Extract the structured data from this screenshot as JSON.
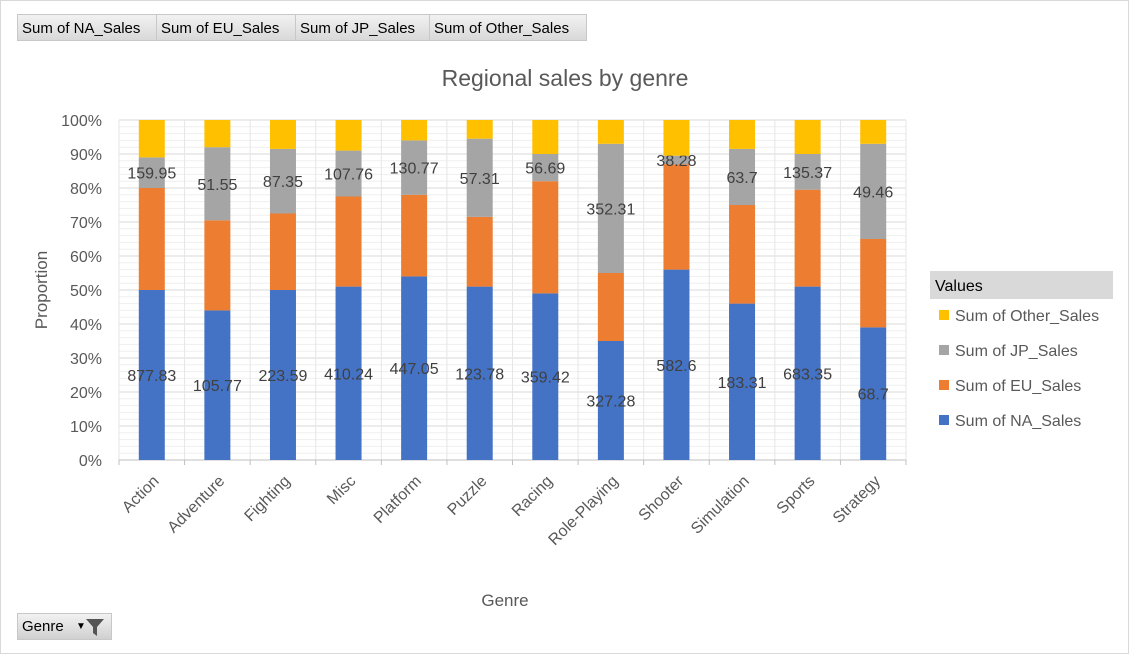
{
  "field_buttons": [
    "Sum of NA_Sales",
    "Sum of EU_Sales",
    "Sum of JP_Sales",
    "Sum of Other_Sales"
  ],
  "genre_filter": {
    "label": "Genre"
  },
  "legend_title": "Values",
  "colors": {
    "na": "#4472c4",
    "eu": "#ed7d31",
    "jp": "#a5a5a5",
    "other": "#ffc000"
  },
  "chart_data": {
    "type": "bar",
    "stacked": "percent",
    "title": "Regional sales by genre",
    "xlabel": "Genre",
    "ylabel": "Proportion",
    "ylim": [
      0,
      1
    ],
    "ytick_labels": [
      "0%",
      "10%",
      "20%",
      "30%",
      "40%",
      "50%",
      "60%",
      "70%",
      "80%",
      "90%",
      "100%"
    ],
    "grid": true,
    "legend_position": "right",
    "categories": [
      "Action",
      "Adventure",
      "Fighting",
      "Misc",
      "Platform",
      "Puzzle",
      "Racing",
      "Role-Playing",
      "Shooter",
      "Simulation",
      "Sports",
      "Strategy"
    ],
    "series": [
      {
        "name": "Sum of NA_Sales",
        "key": "na",
        "values": [
          0.5,
          0.44,
          0.5,
          0.51,
          0.54,
          0.51,
          0.49,
          0.35,
          0.56,
          0.46,
          0.51,
          0.39
        ],
        "labels": [
          "877.83",
          "105.77",
          "223.59",
          "410.24",
          "447.05",
          "123.78",
          "359.42",
          "327.28",
          "582.6",
          "183.31",
          "683.35",
          "68.7"
        ]
      },
      {
        "name": "Sum of EU_Sales",
        "key": "eu",
        "values": [
          0.3,
          0.265,
          0.225,
          0.265,
          0.24,
          0.205,
          0.33,
          0.2,
          0.31,
          0.29,
          0.285,
          0.26
        ]
      },
      {
        "name": "Sum of JP_Sales",
        "key": "jp",
        "values": [
          0.09,
          0.215,
          0.19,
          0.135,
          0.16,
          0.23,
          0.08,
          0.38,
          0.025,
          0.165,
          0.105,
          0.28
        ],
        "labels": [
          "159.95",
          "51.55",
          "87.35",
          "107.76",
          "130.77",
          "57.31",
          "56.69",
          "352.31",
          "38.28",
          "63.7",
          "135.37",
          "49.46"
        ]
      },
      {
        "name": "Sum of Other_Sales",
        "key": "other",
        "values": [
          0.11,
          0.08,
          0.085,
          0.09,
          0.06,
          0.055,
          0.1,
          0.07,
          0.105,
          0.085,
          0.1,
          0.07
        ]
      }
    ]
  }
}
